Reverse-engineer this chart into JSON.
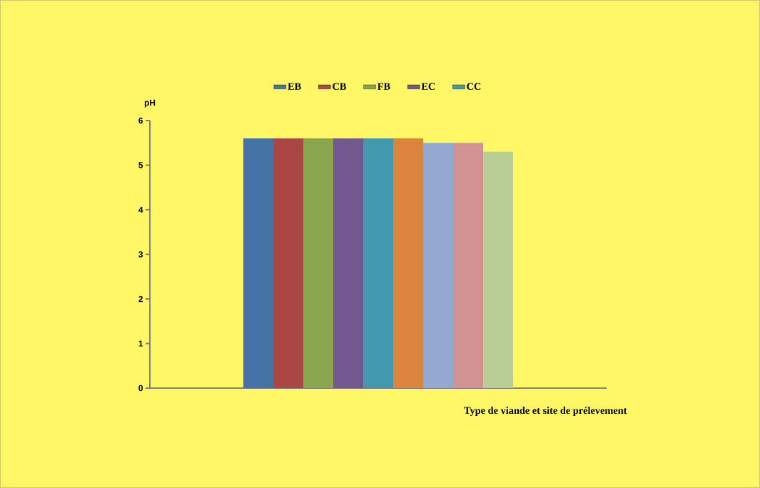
{
  "chart_data": {
    "type": "bar",
    "ylabel": "pH",
    "xlabel": "Type de viande et site de prélevement",
    "categories": [
      null
    ],
    "series": [
      {
        "name": "EB",
        "color": "#4572a7",
        "values": [
          5.6
        ]
      },
      {
        "name": "CB",
        "color": "#aa4643",
        "values": [
          5.6
        ]
      },
      {
        "name": "FB",
        "color": "#89a54e",
        "values": [
          5.6
        ]
      },
      {
        "name": "EC",
        "color": "#71588f",
        "values": [
          5.6
        ]
      },
      {
        "name": "CC",
        "color": "#4198af",
        "values": [
          5.6
        ]
      },
      {
        "color": "#db843d",
        "values": [
          5.6
        ]
      },
      {
        "color": "#93a9cf",
        "values": [
          5.5
        ]
      },
      {
        "color": "#d19392",
        "values": [
          5.5
        ]
      },
      {
        "color": "#b9cd96",
        "values": [
          5.3
        ]
      }
    ],
    "ylim": [
      0,
      6
    ],
    "yticks": [
      0,
      1,
      2,
      3,
      4,
      5,
      6
    ],
    "legend": "top"
  }
}
